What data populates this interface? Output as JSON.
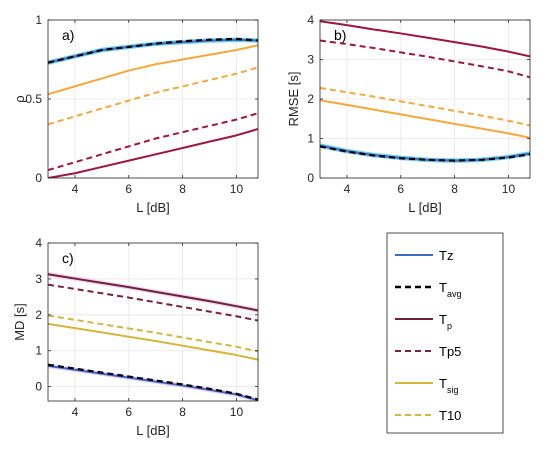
{
  "colors": {
    "Tz": "#3c6cc8",
    "Tavg": "#000000",
    "Tp": "#a0153e",
    "Tp_ab": "#6b2437",
    "Tp5": "#a0153e",
    "Tp5_ab": "#7a2040",
    "Tsig": "#f4a93a",
    "Tsig_ab": "#d4b63a",
    "T10": "#f4a93a",
    "T10_ab": "#d4b63a",
    "Tz_glow": "#35b8e0",
    "Tp_glow_c": "#ecc0ec"
  },
  "legend": {
    "entries": [
      {
        "main": "Tz",
        "sub": "",
        "color": "Tz",
        "dash": false,
        "width": 2.0
      },
      {
        "main": "T",
        "sub": "avg",
        "color": "Tavg",
        "dash": true,
        "width": 2.4
      },
      {
        "main": "T",
        "sub": "p",
        "color": "Tp_ab",
        "dash": false,
        "width": 2.0
      },
      {
        "main": "Tp5",
        "sub": "",
        "color": "Tp5_ab",
        "dash": true,
        "width": 2.0
      },
      {
        "main": "T",
        "sub": "sig",
        "color": "Tsig_ab",
        "dash": false,
        "width": 2.0
      },
      {
        "main": "T10",
        "sub": "",
        "color": "T10_ab",
        "dash": true,
        "width": 2.0
      }
    ]
  },
  "chart_data": [
    {
      "type": "line",
      "panel_label": "a)",
      "xlabel": "L [dB]",
      "ylabel": "ρ",
      "xlim": [
        3,
        10.8
      ],
      "ylim": [
        0,
        1
      ],
      "xticks": [
        4,
        6,
        8,
        10
      ],
      "yticks": [
        0,
        0.5,
        1
      ],
      "yticklabels": [
        "0",
        "0.5",
        "1"
      ],
      "grid": true,
      "x": [
        3,
        4,
        5,
        6,
        7,
        8,
        9,
        10,
        10.8
      ],
      "series": [
        {
          "name": "Tz",
          "color": "Tz",
          "dash": false,
          "width": 2.0,
          "glow": "Tz_glow",
          "values": [
            0.73,
            0.77,
            0.81,
            0.83,
            0.85,
            0.86,
            0.87,
            0.875,
            0.87
          ]
        },
        {
          "name": "Tavg",
          "color": "Tavg",
          "dash": true,
          "width": 2.2,
          "values": [
            0.73,
            0.77,
            0.81,
            0.83,
            0.85,
            0.865,
            0.875,
            0.88,
            0.87
          ]
        },
        {
          "name": "Tp",
          "color": "Tp",
          "dash": false,
          "width": 2.0,
          "values": [
            0.0,
            0.03,
            0.07,
            0.11,
            0.15,
            0.19,
            0.23,
            0.27,
            0.31
          ]
        },
        {
          "name": "Tp5",
          "color": "Tp5",
          "dash": true,
          "width": 2.0,
          "values": [
            0.05,
            0.1,
            0.15,
            0.2,
            0.25,
            0.29,
            0.33,
            0.37,
            0.41
          ]
        },
        {
          "name": "Tsig",
          "color": "Tsig",
          "dash": false,
          "width": 2.0,
          "values": [
            0.53,
            0.58,
            0.63,
            0.68,
            0.72,
            0.75,
            0.78,
            0.81,
            0.84
          ]
        },
        {
          "name": "T10",
          "color": "T10",
          "dash": true,
          "width": 2.0,
          "values": [
            0.34,
            0.39,
            0.44,
            0.49,
            0.54,
            0.58,
            0.62,
            0.66,
            0.7
          ]
        }
      ]
    },
    {
      "type": "line",
      "panel_label": "b)",
      "xlabel": "L [dB]",
      "ylabel": "RMSE [s]",
      "xlim": [
        3,
        10.8
      ],
      "ylim": [
        0,
        4
      ],
      "xticks": [
        4,
        6,
        8,
        10
      ],
      "yticks": [
        0,
        1,
        2,
        3,
        4
      ],
      "yticklabels": [
        "0",
        "1",
        "2",
        "3",
        "4"
      ],
      "grid": true,
      "x": [
        3,
        4,
        5,
        6,
        7,
        8,
        9,
        10,
        10.8
      ],
      "series": [
        {
          "name": "Tz",
          "color": "Tz",
          "dash": false,
          "width": 2.0,
          "glow": "Tz_glow",
          "values": [
            0.82,
            0.68,
            0.58,
            0.51,
            0.46,
            0.44,
            0.46,
            0.53,
            0.62
          ]
        },
        {
          "name": "Tavg",
          "color": "Tavg",
          "dash": true,
          "width": 2.2,
          "values": [
            0.8,
            0.67,
            0.57,
            0.5,
            0.46,
            0.44,
            0.46,
            0.52,
            0.6
          ]
        },
        {
          "name": "Tp",
          "color": "Tp",
          "dash": false,
          "width": 2.0,
          "values": [
            3.97,
            3.87,
            3.76,
            3.66,
            3.55,
            3.44,
            3.33,
            3.2,
            3.08
          ]
        },
        {
          "name": "Tp5",
          "color": "Tp5",
          "dash": true,
          "width": 2.0,
          "values": [
            3.48,
            3.39,
            3.29,
            3.18,
            3.07,
            2.95,
            2.83,
            2.7,
            2.55
          ]
        },
        {
          "name": "Tsig",
          "color": "Tsig",
          "dash": false,
          "width": 2.0,
          "values": [
            1.97,
            1.85,
            1.73,
            1.61,
            1.49,
            1.37,
            1.25,
            1.13,
            1.02
          ]
        },
        {
          "name": "T10",
          "color": "T10",
          "dash": true,
          "width": 2.0,
          "values": [
            2.28,
            2.17,
            2.06,
            1.94,
            1.82,
            1.7,
            1.58,
            1.45,
            1.33
          ]
        }
      ]
    },
    {
      "type": "line",
      "panel_label": "c)",
      "xlabel": "L [dB]",
      "ylabel": "MD [s]",
      "xlim": [
        3,
        10.8
      ],
      "ylim": [
        -0.4,
        4
      ],
      "xticks": [
        4,
        6,
        8,
        10
      ],
      "yticks": [
        0,
        1,
        2,
        3,
        4
      ],
      "yticklabels": [
        "0",
        "1",
        "2",
        "3",
        "4"
      ],
      "grid": true,
      "x": [
        3,
        4,
        5,
        6,
        7,
        8,
        9,
        10,
        10.8
      ],
      "series": [
        {
          "name": "Tz",
          "color": "Tz",
          "dash": false,
          "width": 2.0,
          "glow": "Tp_glow_c",
          "values": [
            0.58,
            0.47,
            0.36,
            0.25,
            0.14,
            0.03,
            -0.09,
            -0.22,
            -0.38
          ]
        },
        {
          "name": "Tavg",
          "color": "Tavg",
          "dash": true,
          "width": 2.2,
          "values": [
            0.61,
            0.5,
            0.39,
            0.28,
            0.17,
            0.06,
            -0.06,
            -0.2,
            -0.36
          ]
        },
        {
          "name": "Tp",
          "color": "Tp_ab",
          "dash": false,
          "width": 2.0,
          "glow": "Tp_glow_c",
          "values": [
            3.13,
            3.01,
            2.89,
            2.77,
            2.64,
            2.51,
            2.38,
            2.24,
            2.12
          ]
        },
        {
          "name": "Tp5",
          "color": "Tp5_ab",
          "dash": true,
          "width": 2.0,
          "values": [
            2.84,
            2.72,
            2.6,
            2.48,
            2.35,
            2.22,
            2.09,
            1.96,
            1.84
          ]
        },
        {
          "name": "Tsig",
          "color": "Tsig_ab",
          "dash": false,
          "width": 2.0,
          "values": [
            1.75,
            1.63,
            1.51,
            1.39,
            1.27,
            1.14,
            1.01,
            0.88,
            0.75
          ]
        },
        {
          "name": "T10",
          "color": "T10_ab",
          "dash": true,
          "width": 2.0,
          "values": [
            1.98,
            1.86,
            1.74,
            1.62,
            1.5,
            1.37,
            1.24,
            1.11,
            0.98
          ]
        }
      ]
    }
  ]
}
